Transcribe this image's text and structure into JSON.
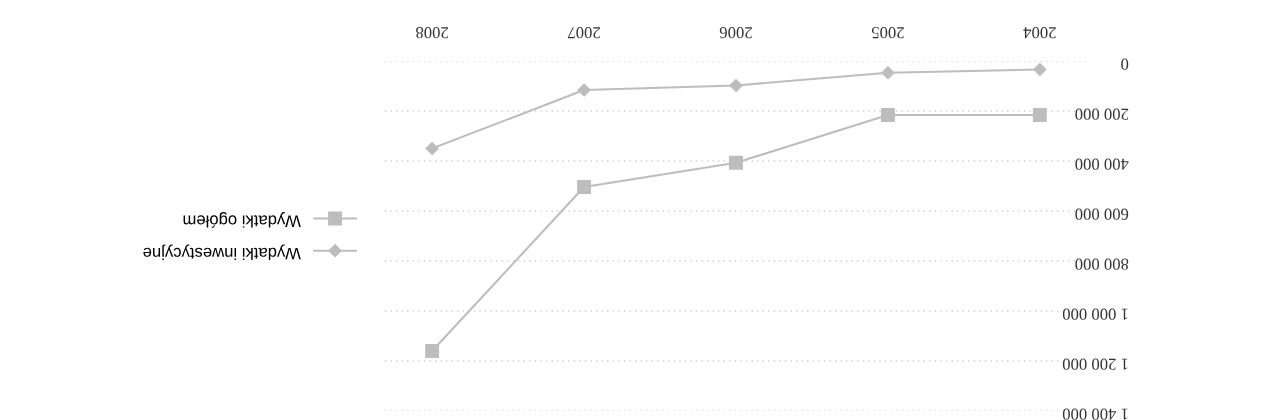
{
  "chart_data": {
    "type": "line",
    "categories": [
      "2008",
      "2007",
      "2006",
      "2005",
      "2004"
    ],
    "series": [
      {
        "name": "Wydatki ogółem",
        "color": "#bdbdbd",
        "marker": "square",
        "values": [
          1160000,
          504000,
          407000,
          216000,
          216000
        ]
      },
      {
        "name": "Wydatki inwestycyjne",
        "color": "#bdbdbd",
        "marker": "diamond",
        "values": [
          350000,
          116000,
          98000,
          47000,
          34000
        ]
      }
    ],
    "ylim": [
      1400000,
      0
    ],
    "yticks": [
      0,
      {
        "value": 200000,
        "label": "200 000"
      },
      {
        "value": 400000,
        "label": "400 000"
      },
      {
        "value": 600000,
        "label": "600 000"
      },
      {
        "value": 800000,
        "label": "800 000"
      },
      {
        "value": 1000000,
        "label": "1 000 000"
      },
      {
        "value": 1200000,
        "label": "1 200 000"
      },
      {
        "value": 1400000,
        "label": "1 400 000"
      }
    ],
    "grid": "y",
    "legend": "left",
    "line_style": "solid"
  }
}
